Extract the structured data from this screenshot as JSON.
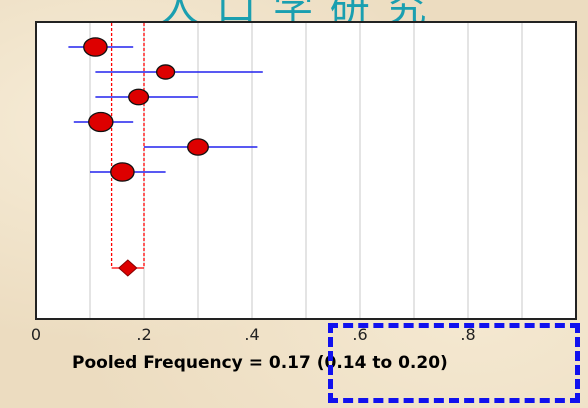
{
  "slide": {
    "title": "人 口 学 研 究"
  },
  "pooled": {
    "label": "Pooled Frequency",
    "equals": "=",
    "estimate": "0.17",
    "ci": "(0.14 to 0.20)"
  },
  "colors": {
    "marker_fill": "#dd0000",
    "ci_line": "#2222ee",
    "pooled_band": "#ff0000",
    "highlight_box": "#1111ee",
    "title": "#1a9fb0"
  },
  "chart_data": {
    "type": "scatter",
    "subtype": "forest-plot",
    "title": "",
    "xlabel": "",
    "ylabel": "",
    "xlim": [
      0,
      1
    ],
    "x_tick_labels": [
      "0",
      ".2",
      ".4",
      ".6",
      ".8"
    ],
    "x_ticks": [
      0,
      0.2,
      0.4,
      0.6,
      0.8
    ],
    "grid": "vertical",
    "studies": [
      {
        "estimate": 0.11,
        "ci_low": 0.06,
        "ci_high": 0.18,
        "weight": 1.3
      },
      {
        "estimate": 0.24,
        "ci_low": 0.11,
        "ci_high": 0.42,
        "weight": 1.0
      },
      {
        "estimate": 0.19,
        "ci_low": 0.11,
        "ci_high": 0.3,
        "weight": 1.1
      },
      {
        "estimate": 0.12,
        "ci_low": 0.07,
        "ci_high": 0.18,
        "weight": 1.35
      },
      {
        "estimate": 0.3,
        "ci_low": 0.2,
        "ci_high": 0.41,
        "weight": 1.15
      },
      {
        "estimate": 0.16,
        "ci_low": 0.1,
        "ci_high": 0.24,
        "weight": 1.3
      }
    ],
    "pooled": {
      "estimate": 0.17,
      "ci_low": 0.14,
      "ci_high": 0.2
    }
  }
}
